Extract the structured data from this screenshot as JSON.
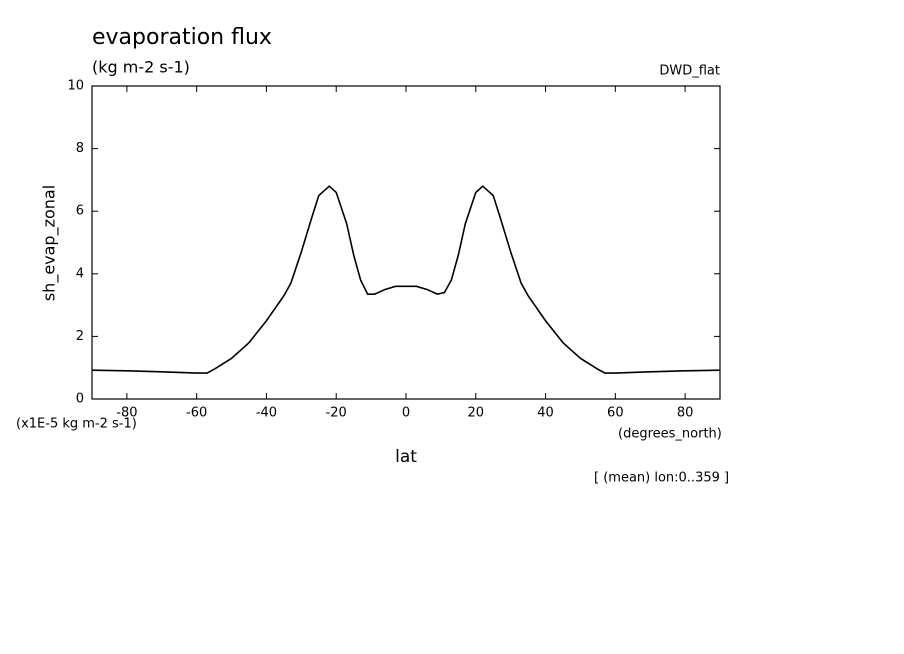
{
  "chart_data": {
    "type": "line",
    "title": "evaporation flux",
    "subtitle": "(kg m-2 s-1)",
    "dataset_label": "DWD_flat",
    "y_axis_label": "sh_evap_zonal",
    "y_units_label": "(x1E-5 kg m-2 s-1)",
    "x_axis_label": "lat",
    "x_units_label": "(degrees_north)",
    "note": "[ (mean) lon:0..359 ]",
    "color": "#000000",
    "x": [
      -90,
      -80,
      -70,
      -60,
      -57,
      -55,
      -50,
      -45,
      -40,
      -35,
      -33,
      -30,
      -27,
      -25,
      -22,
      -20,
      -17,
      -15,
      -13,
      -11,
      -9,
      -6,
      -3,
      0,
      3,
      6,
      9,
      11,
      13,
      15,
      17,
      20,
      22,
      25,
      27,
      30,
      33,
      35,
      40,
      45,
      50,
      55,
      57,
      60,
      70,
      80,
      90
    ],
    "values": [
      0.92,
      0.9,
      0.87,
      0.83,
      0.83,
      0.95,
      1.3,
      1.8,
      2.5,
      3.3,
      3.7,
      4.7,
      5.8,
      6.5,
      6.8,
      6.6,
      5.6,
      4.6,
      3.8,
      3.35,
      3.35,
      3.5,
      3.6,
      3.6,
      3.6,
      3.5,
      3.35,
      3.4,
      3.8,
      4.6,
      5.6,
      6.6,
      6.8,
      6.5,
      5.8,
      4.7,
      3.7,
      3.3,
      2.5,
      1.8,
      1.3,
      0.95,
      0.83,
      0.83,
      0.87,
      0.9,
      0.92
    ],
    "xlim": [
      -90,
      90
    ],
    "xticks": [
      -80,
      -60,
      -40,
      -20,
      0,
      20,
      40,
      60,
      80
    ],
    "ylim": [
      0,
      10
    ],
    "yticks": [
      0,
      2,
      4,
      6,
      8,
      10
    ]
  }
}
